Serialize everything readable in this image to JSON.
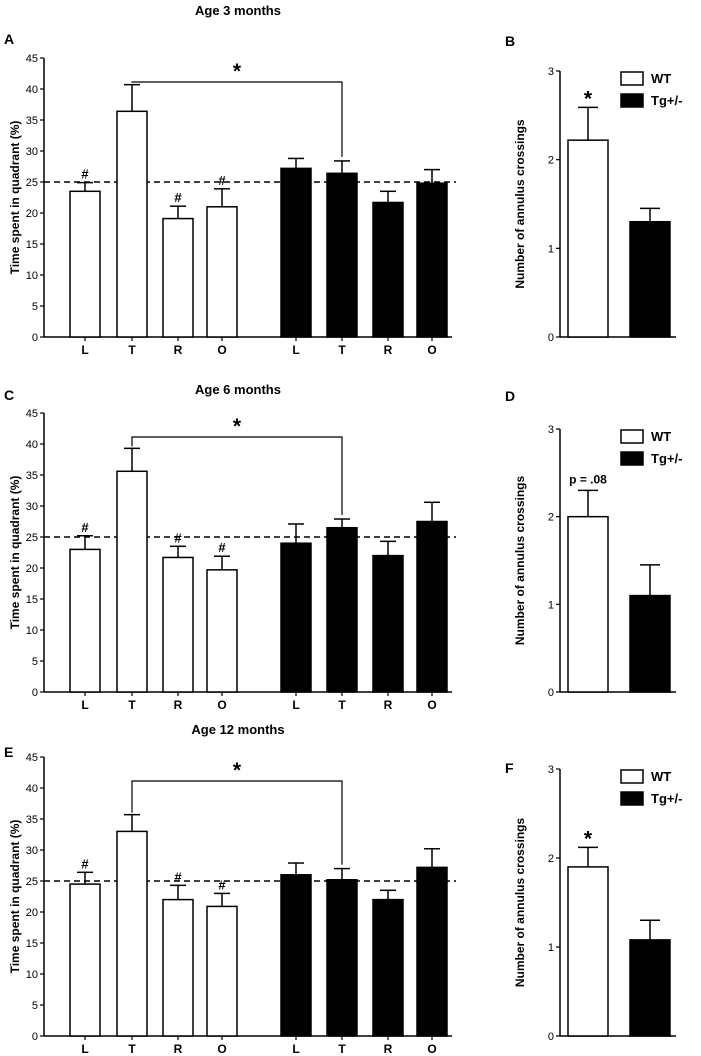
{
  "colors": {
    "wt": "#ffffff",
    "tg": "#000000",
    "axis": "#000000",
    "background": "#ffffff"
  },
  "legend": [
    {
      "name": "WT",
      "color": "#ffffff"
    },
    {
      "name": "Tg+/-",
      "color": "#000000"
    }
  ],
  "chart_data": [
    {
      "panel": "A",
      "type": "bar",
      "title": "Age 3 months",
      "ylabel": "Time spent in quadrant (%)",
      "xlabel": "",
      "ylim": [
        0,
        45
      ],
      "yticks": [
        0,
        5,
        10,
        15,
        20,
        25,
        30,
        35,
        40,
        45
      ],
      "categories": [
        "L",
        "T",
        "R",
        "O"
      ],
      "reference_line": 25,
      "series": [
        {
          "name": "WT",
          "values": [
            23.5,
            36.4,
            19.1,
            21.0
          ],
          "errors": [
            1.4,
            4.3,
            2.0,
            2.9
          ],
          "markers": [
            "#",
            "",
            "#",
            "#"
          ]
        },
        {
          "name": "Tg+/-",
          "values": [
            27.2,
            26.4,
            21.7,
            24.8
          ],
          "errors": [
            1.6,
            2.0,
            1.8,
            2.2
          ],
          "markers": [
            "",
            "",
            "",
            ""
          ]
        }
      ],
      "bracket": {
        "from": "WT T",
        "to": "Tg+/- T",
        "label": "*"
      }
    },
    {
      "panel": "B",
      "type": "bar",
      "title": "",
      "ylabel": "Number of annulus crossings",
      "xlabel": "",
      "ylim": [
        0,
        3
      ],
      "yticks": [
        0,
        1,
        2,
        3
      ],
      "series": [
        {
          "name": "WT",
          "values": [
            2.22
          ],
          "errors": [
            0.37
          ],
          "markers": [
            "*"
          ]
        },
        {
          "name": "Tg+/-",
          "values": [
            1.3
          ],
          "errors": [
            0.15
          ],
          "markers": [
            ""
          ]
        }
      ]
    },
    {
      "panel": "C",
      "type": "bar",
      "title": "Age 6 months",
      "ylabel": "Time spent in quadrant (%)",
      "xlabel": "",
      "ylim": [
        0,
        45
      ],
      "yticks": [
        0,
        5,
        10,
        15,
        20,
        25,
        30,
        35,
        40,
        45
      ],
      "categories": [
        "L",
        "T",
        "R",
        "O"
      ],
      "reference_line": 25,
      "series": [
        {
          "name": "WT",
          "values": [
            23.0,
            35.6,
            21.7,
            19.7
          ],
          "errors": [
            2.2,
            3.7,
            1.8,
            2.2
          ],
          "markers": [
            "#",
            "",
            "#",
            "#"
          ]
        },
        {
          "name": "Tg+/-",
          "values": [
            24.0,
            26.5,
            22.0,
            27.5
          ],
          "errors": [
            3.1,
            1.4,
            2.3,
            3.1
          ],
          "markers": [
            "",
            "",
            "",
            ""
          ]
        }
      ],
      "bracket": {
        "from": "WT T",
        "to": "Tg+/- T",
        "label": "*"
      }
    },
    {
      "panel": "D",
      "type": "bar",
      "title": "",
      "ylabel": "Number of annulus crossings",
      "xlabel": "",
      "ylim": [
        0,
        3
      ],
      "yticks": [
        0,
        1,
        2,
        3
      ],
      "series": [
        {
          "name": "WT",
          "values": [
            2.0
          ],
          "errors": [
            0.3
          ],
          "markers": [
            "p = .08"
          ]
        },
        {
          "name": "Tg+/-",
          "values": [
            1.1
          ],
          "errors": [
            0.35
          ],
          "markers": [
            ""
          ]
        }
      ]
    },
    {
      "panel": "E",
      "type": "bar",
      "title": "Age 12 months",
      "ylabel": "Time spent in quadrant (%)",
      "xlabel": "",
      "ylim": [
        0,
        45
      ],
      "yticks": [
        0,
        5,
        10,
        15,
        20,
        25,
        30,
        35,
        40,
        45
      ],
      "categories": [
        "L",
        "T",
        "R",
        "O"
      ],
      "reference_line": 25,
      "series": [
        {
          "name": "WT",
          "values": [
            24.5,
            33.0,
            22.0,
            20.9
          ],
          "errors": [
            1.9,
            2.7,
            2.3,
            2.1
          ],
          "markers": [
            "#",
            "",
            "#",
            "#"
          ]
        },
        {
          "name": "Tg+/-",
          "values": [
            26.0,
            25.2,
            22.0,
            27.2
          ],
          "errors": [
            1.9,
            1.8,
            1.5,
            3.0
          ],
          "markers": [
            "",
            "",
            "",
            ""
          ]
        }
      ],
      "bracket": {
        "from": "WT T",
        "to": "Tg+/- T",
        "label": "*"
      }
    },
    {
      "panel": "F",
      "type": "bar",
      "title": "",
      "ylabel": "Number of annulus crossings",
      "xlabel": "",
      "ylim": [
        0,
        3
      ],
      "yticks": [
        0,
        1,
        2,
        3
      ],
      "series": [
        {
          "name": "WT",
          "values": [
            1.9
          ],
          "errors": [
            0.22
          ],
          "markers": [
            "*"
          ]
        },
        {
          "name": "Tg+/-",
          "values": [
            1.08
          ],
          "errors": [
            0.22
          ],
          "markers": [
            ""
          ]
        }
      ]
    }
  ]
}
